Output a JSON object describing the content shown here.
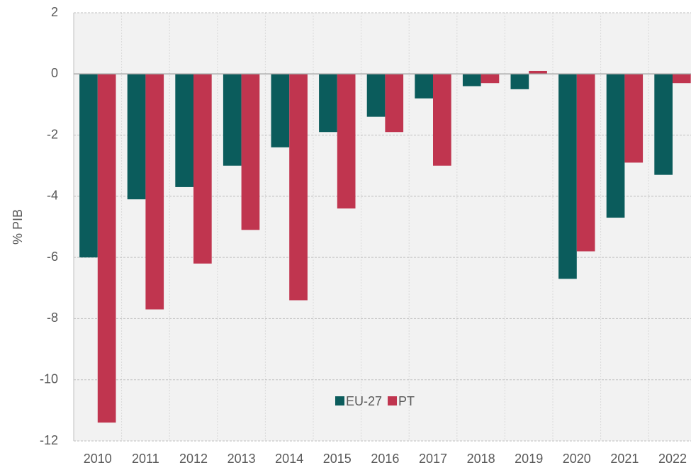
{
  "chart_data": {
    "type": "bar",
    "y_label": "% PIB",
    "categories": [
      "2010",
      "2011",
      "2012",
      "2013",
      "2014",
      "2015",
      "2016",
      "2017",
      "2018",
      "2019",
      "2020",
      "2021",
      "2022"
    ],
    "series": [
      {
        "name": "EU-27",
        "color": "#0b5c5c",
        "values": [
          -6.0,
          -4.1,
          -3.7,
          -3.0,
          -2.4,
          -1.9,
          -1.4,
          -0.8,
          -0.4,
          -0.5,
          -6.7,
          -4.7,
          -3.3
        ]
      },
      {
        "name": "PT",
        "color": "#c0354f",
        "values": [
          -11.4,
          -7.7,
          -6.2,
          -5.1,
          -7.4,
          -4.4,
          -1.9,
          -3.0,
          -0.3,
          0.1,
          -5.8,
          -2.9,
          -0.3
        ]
      }
    ],
    "ylim": [
      -12,
      2
    ],
    "yticks": [
      -12,
      -10,
      -8,
      -6,
      -4,
      -2,
      0,
      2
    ],
    "grid": true
  }
}
